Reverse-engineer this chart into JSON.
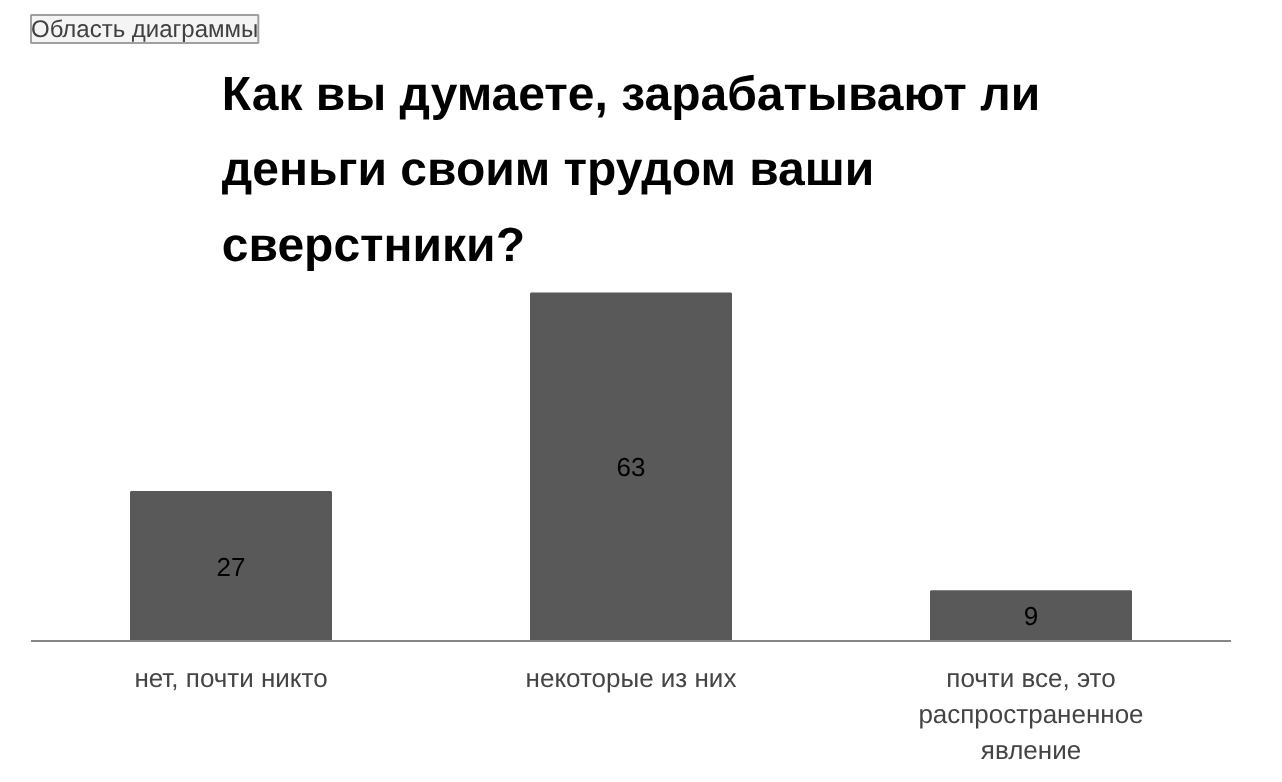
{
  "chart_data": {
    "type": "bar",
    "title": "Как вы думаете, зарабатывают ли деньги своим  трудом ваши сверстники?",
    "categories": [
      "нет, почти никто",
      "некоторые из них",
      "почти все, это распространенное явление"
    ],
    "values": [
      27,
      63,
      9
    ],
    "color": "#595959",
    "data_labels": true,
    "grid": false,
    "annotations": [
      "Область диаграммы"
    ]
  }
}
